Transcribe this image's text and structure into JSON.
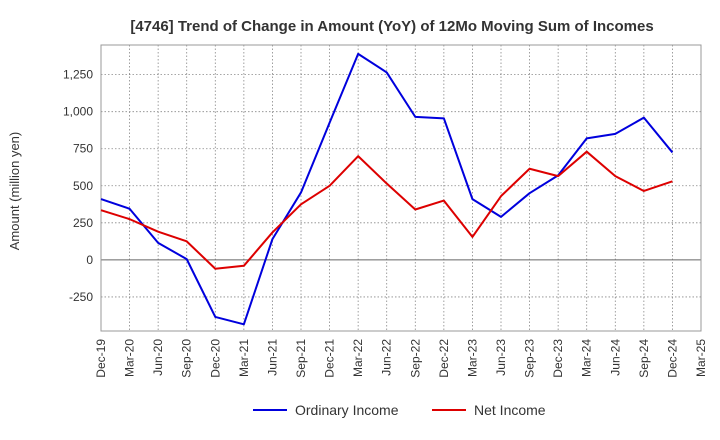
{
  "chart_data": {
    "type": "line",
    "title": "[4746]  Trend of Change in Amount (YoY) of 12Mo Moving Sum of Incomes",
    "xlabel": "",
    "ylabel": "Amount (million yen)",
    "ylim": [
      -480,
      1450
    ],
    "yticks": [
      -250,
      0,
      250,
      500,
      750,
      1000,
      1250
    ],
    "ytick_labels": [
      "-250",
      "0",
      "250",
      "500",
      "750",
      "1,000",
      "1,250"
    ],
    "categories": [
      "Dec-19",
      "Mar-20",
      "Jun-20",
      "Sep-20",
      "Dec-20",
      "Mar-21",
      "Jun-21",
      "Sep-21",
      "Dec-21",
      "Mar-22",
      "Jun-22",
      "Sep-22",
      "Dec-22",
      "Mar-23",
      "Jun-23",
      "Sep-23",
      "Dec-23",
      "Mar-24",
      "Jun-24",
      "Sep-24",
      "Dec-24",
      "Mar-25"
    ],
    "grid": true,
    "legend_position": "bottom",
    "series": [
      {
        "name": "Ordinary Income",
        "color": "#0000dd",
        "values": [
          410,
          345,
          115,
          5,
          -385,
          -435,
          140,
          455,
          925,
          1390,
          1265,
          965,
          955,
          410,
          290,
          450,
          570,
          820,
          850,
          960,
          725,
          null
        ]
      },
      {
        "name": "Net Income",
        "color": "#dd0000",
        "values": [
          335,
          275,
          190,
          125,
          -60,
          -40,
          185,
          375,
          500,
          700,
          515,
          340,
          400,
          155,
          430,
          615,
          565,
          730,
          565,
          465,
          530,
          null
        ]
      }
    ]
  }
}
